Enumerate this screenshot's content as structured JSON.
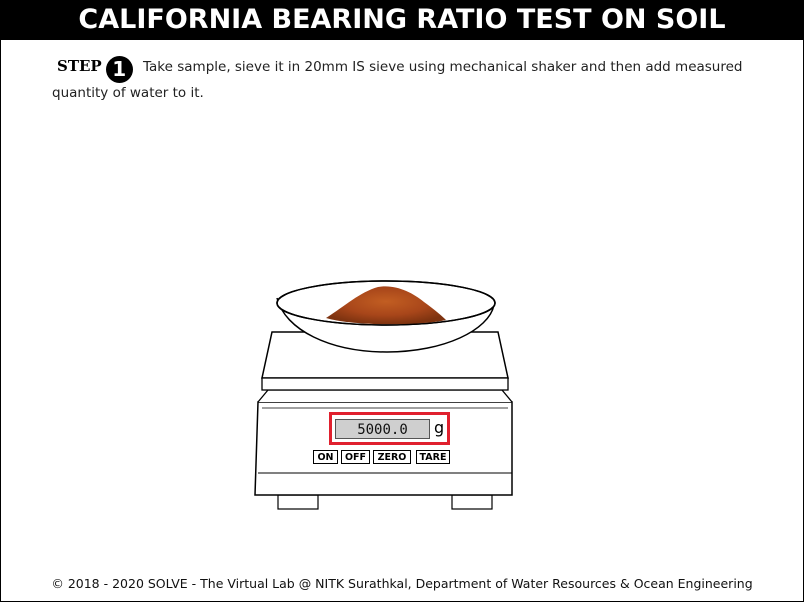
{
  "header": {
    "title": "CALIFORNIA BEARING RATIO TEST ON SOIL"
  },
  "step": {
    "label": "STEP",
    "number": "1",
    "instruction": "Take sample, sieve it in 20mm IS sieve using mechanical shaker and then add measured quantity of water to it."
  },
  "scale": {
    "display_value": "5000.0",
    "unit": "g",
    "buttons": {
      "on": "ON",
      "off": "OFF",
      "zero": "ZERO",
      "tare": "TARE"
    },
    "highlight_color": "#e0202e",
    "soil_color": "#b3501a"
  },
  "footer": {
    "text": "© 2018 - 2020 SOLVE - The Virtual Lab @ NITK Surathkal, Department of Water Resources & Ocean Engineering"
  }
}
